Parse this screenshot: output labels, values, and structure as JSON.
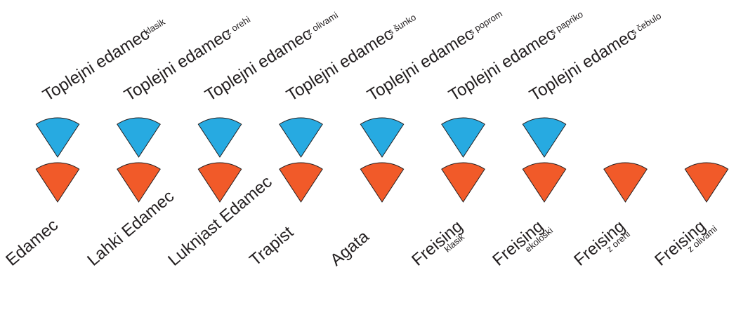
{
  "colors": {
    "top": "#27aae1",
    "bottom": "#f15a29",
    "stroke": "#231f20"
  },
  "top_row": [
    {
      "name": "Toplejni edamec",
      "variant": "klasik"
    },
    {
      "name": "Toplejni edamec",
      "variant": "z orehi"
    },
    {
      "name": "Toplejni edamec",
      "variant": "z olivami"
    },
    {
      "name": "Toplejni edamec",
      "variant": "s šunko"
    },
    {
      "name": "Toplejni edamec",
      "variant": "s poprom"
    },
    {
      "name": "Toplejni edamec",
      "variant": "s papriko"
    },
    {
      "name": "Toplejni edamec",
      "variant": "s čebulo"
    }
  ],
  "bottom_row": [
    {
      "name": "Edamec",
      "variant": ""
    },
    {
      "name": "Lahki Edamec",
      "variant": ""
    },
    {
      "name": "Luknjast Edamec",
      "variant": ""
    },
    {
      "name": "Trapist",
      "variant": ""
    },
    {
      "name": "Agata",
      "variant": ""
    },
    {
      "name": "Freising",
      "variant": "klasik"
    },
    {
      "name": "Freising",
      "variant": "ekološki"
    },
    {
      "name": "Freising",
      "variant": "z orehi"
    },
    {
      "name": "Freising",
      "variant": "z olivami"
    }
  ]
}
